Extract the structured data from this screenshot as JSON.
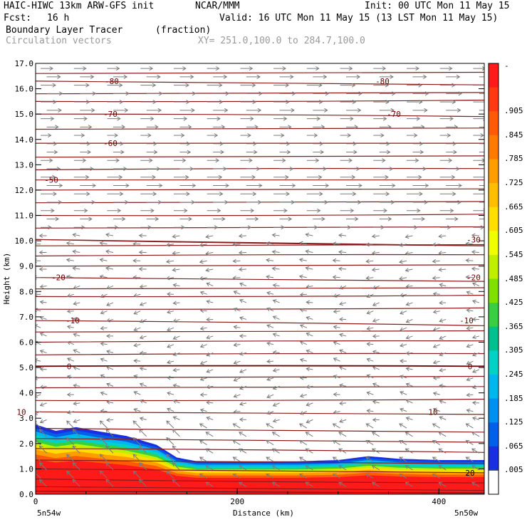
{
  "header": {
    "model": "HAIC-HIWC 13km ARW-GFS init",
    "org": "NCAR/MMM",
    "init": "Init: 00 UTC Mon 11 May 15",
    "fcst_label": "Fcst:",
    "fcst_value": "16 h",
    "valid": "Valid: 16 UTC Mon 11 May 15 (13 LST Mon 11 May 15)",
    "field": "Boundary Layer Tracer",
    "field_units": "(fraction)",
    "vectors": "Circulation vectors",
    "xy": "XY= 251.0,100.0 to 284.7,100.0"
  },
  "chart_data": {
    "type": "cross-section",
    "title": "Boundary Layer Tracer",
    "units": "(fraction)",
    "xlabel": "Distance (km)",
    "ylabel": "Height (km)",
    "xlim": [
      0,
      445
    ],
    "ylim": [
      0,
      17
    ],
    "xticks": [
      "0",
      "200",
      "400"
    ],
    "yticks": [
      "0.0",
      "1.0",
      "2.0",
      "3.0",
      "4.0",
      "5.0",
      "6.0",
      "7.0",
      "8.0",
      "9.0",
      "10.0",
      "11.0",
      "12.0",
      "13.0",
      "14.0",
      "15.0",
      "16.0",
      "17.0"
    ],
    "x_endpoints": [
      "5n54w",
      "5n50w"
    ],
    "tracer_top_km": {
      "x": [
        0,
        20,
        40,
        60,
        90,
        120,
        140,
        160,
        200,
        260,
        300,
        330,
        360,
        400,
        445
      ],
      "y": [
        2.75,
        2.5,
        2.65,
        2.5,
        2.3,
        1.95,
        1.45,
        1.3,
        1.3,
        1.3,
        1.35,
        1.5,
        1.4,
        1.35,
        1.35
      ]
    },
    "colorbar": {
      "labels": [
        "-",
        ".905",
        ".845",
        ".785",
        ".725",
        ".665",
        ".605",
        ".545",
        ".485",
        ".425",
        ".365",
        ".305",
        ".245",
        ".185",
        ".125",
        ".065",
        ".005"
      ],
      "colors": [
        "#ff1a1a",
        "#ff3a10",
        "#ff5a08",
        "#ff7a00",
        "#ff9c00",
        "#ffbe00",
        "#ffde00",
        "#f0ff00",
        "#c0f000",
        "#80e000",
        "#38d040",
        "#00c090",
        "#00d2c8",
        "#00b6ee",
        "#0090f0",
        "#0060e8",
        "#1a30e0"
      ],
      "bottom_color": "#ffffff"
    },
    "temperature_contours_c": [
      {
        "value": 10,
        "label": "10",
        "y": 3.25,
        "tilt": -0.1,
        "lx": [
          30,
          608
        ]
      },
      {
        "value": 0,
        "label": "0",
        "y": 5.05,
        "tilt": 0.0,
        "lx": [
          97,
          660
        ]
      },
      {
        "value": -10,
        "label": "-10",
        "y": 6.85,
        "tilt": -0.2,
        "lx": [
          102,
          655
        ]
      },
      {
        "value": -20,
        "label": "-20",
        "y": 8.55,
        "tilt": -0.15,
        "lx": [
          82,
          665
        ]
      },
      {
        "value": -30,
        "label": "-30",
        "y": 10.05,
        "tilt": -0.25,
        "lx": null
      },
      {
        "value": -30,
        "label": "-30",
        "y": 10.05,
        "tilt": -0.25,
        "lx": [
          665
        ]
      },
      {
        "value": -50,
        "label": "-50",
        "y": 12.4,
        "tilt": 0.0,
        "lx": [
          72
        ]
      },
      {
        "value": -60,
        "label": "-60",
        "y": 13.85,
        "tilt": 0.0,
        "lx": [
          155
        ]
      },
      {
        "value": -70,
        "label": "-70",
        "y": 15.0,
        "tilt": -0.1,
        "lx": [
          155,
          553
        ]
      },
      {
        "value": -80,
        "label": "-80",
        "y": 16.3,
        "tilt": -0.15,
        "lx": [
          157,
          537
        ]
      }
    ],
    "extra_contour_levels_km": [
      0.3,
      0.6,
      1.0,
      1.35,
      1.8,
      2.2,
      2.6,
      3.7,
      4.2,
      4.6,
      5.5,
      6.0,
      6.4,
      7.3,
      7.8,
      8.1,
      9.0,
      9.4,
      9.8,
      10.5,
      11.0,
      11.5,
      12.0,
      12.8,
      13.3,
      14.4,
      15.5,
      15.8,
      16.6
    ],
    "low_level_contour": {
      "label": "20",
      "y": 0.85
    },
    "wind_vectors": {
      "upper_layer_km": [
        10.5,
        17.0
      ],
      "upper_direction": "left-to-right",
      "lower_layer_km": [
        0.0,
        10.0
      ],
      "lower_direction": "right-to-left"
    }
  }
}
